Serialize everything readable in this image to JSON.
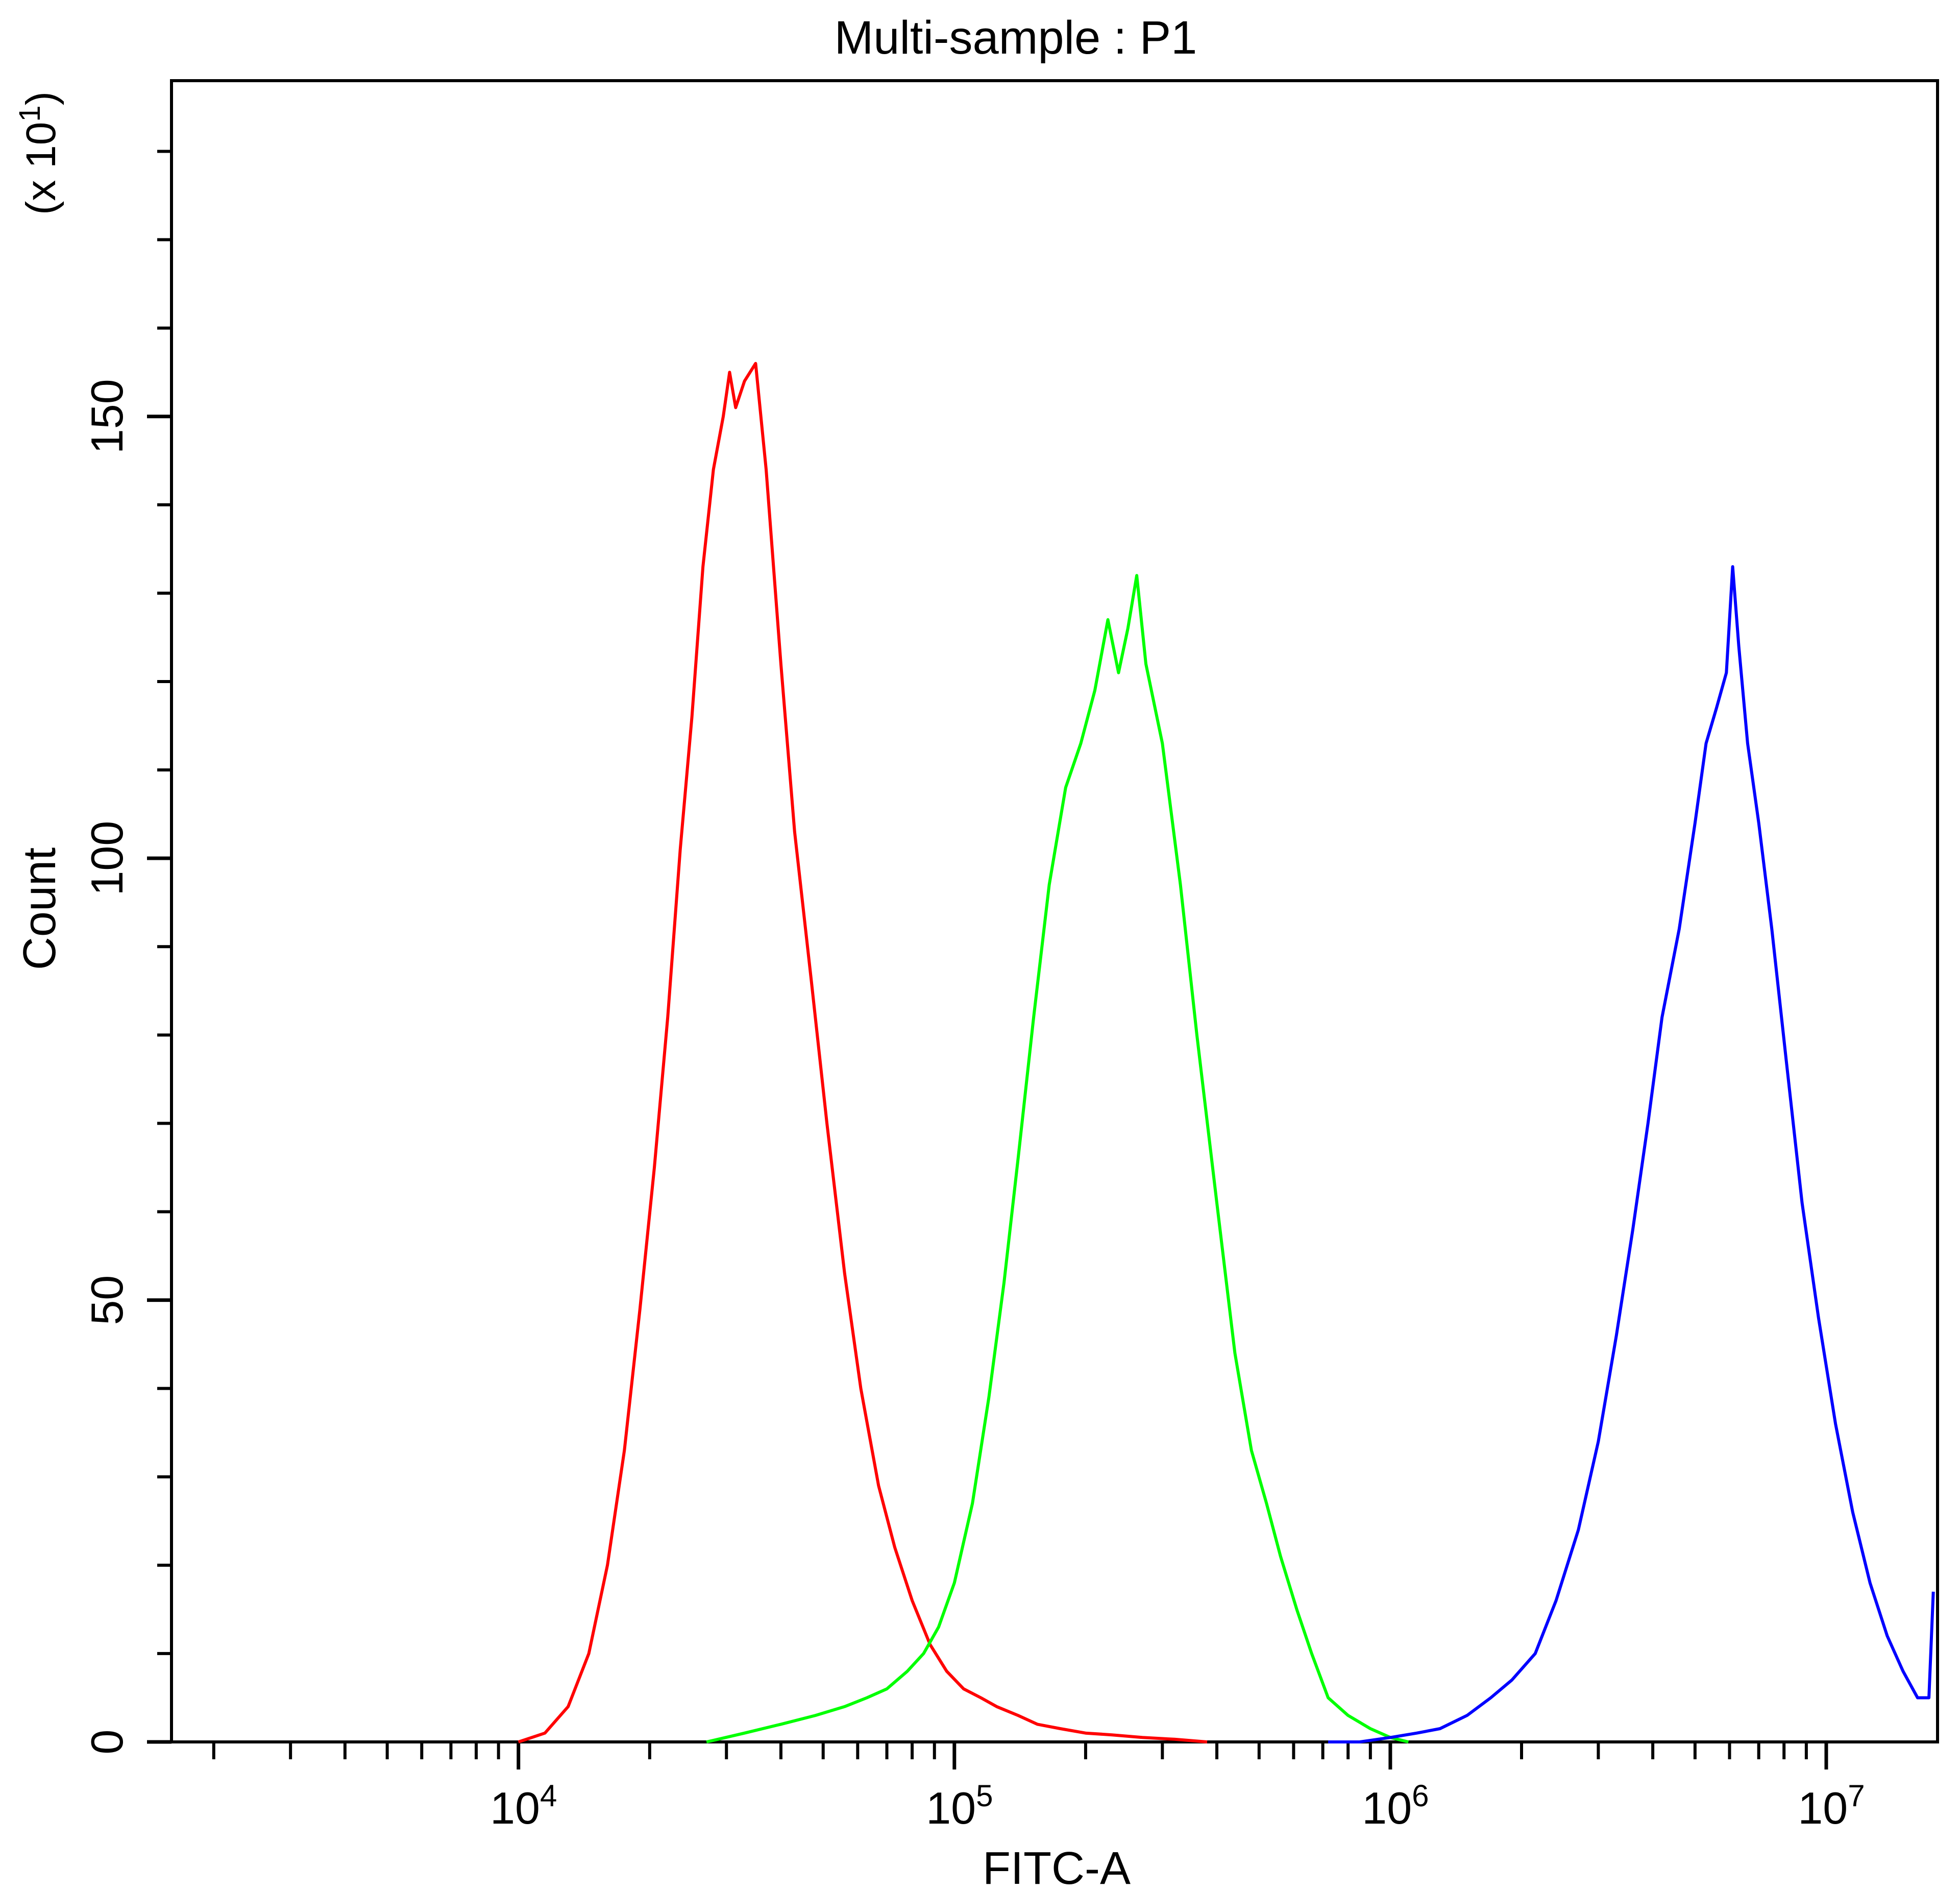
{
  "chart_data": {
    "type": "line",
    "title": "Multi-sample : P1",
    "xlabel": "FITC-A",
    "ylabel": "Count",
    "y_multiplier_label": "(x 10",
    "y_multiplier_exp": "1",
    "y_multiplier_close": ")",
    "x_scale": "log",
    "xlim": [
      1600,
      18000000
    ],
    "ylim": [
      0,
      188
    ],
    "x_ticks": [
      {
        "base": "10",
        "exp": "4",
        "value": 10000
      },
      {
        "base": "10",
        "exp": "5",
        "value": 100000
      },
      {
        "base": "10",
        "exp": "6",
        "value": 1000000
      },
      {
        "base": "10",
        "exp": "7",
        "value": 10000000
      }
    ],
    "y_ticks": [
      {
        "label": "0",
        "value": 0
      },
      {
        "label": "50",
        "value": 50
      },
      {
        "label": "100",
        "value": 100
      },
      {
        "label": "150",
        "value": 150
      }
    ],
    "grid": false,
    "legend": "none",
    "series": [
      {
        "color": "#ff0000",
        "x": [
          10000,
          11500,
          13000,
          14500,
          16000,
          17500,
          19000,
          20500,
          22000,
          23500,
          25000,
          26500,
          28000,
          29500,
          30500,
          31500,
          33000,
          35000,
          37000,
          40000,
          43000,
          47000,
          51000,
          56000,
          61000,
          67000,
          73000,
          80000,
          88000,
          96000,
          105000,
          115000,
          125000,
          140000,
          155000,
          175000,
          200000,
          230000,
          270000,
          320000,
          380000
        ],
        "y": [
          0,
          1,
          4,
          10,
          20,
          33,
          49,
          65,
          82,
          101,
          116,
          133,
          144,
          150,
          155,
          151,
          154,
          156,
          144,
          122,
          103,
          86,
          70,
          53,
          40,
          29,
          22,
          16,
          11,
          8,
          6,
          5,
          4,
          3,
          2,
          1.5,
          1,
          0.8,
          0.5,
          0.3,
          0
        ]
      },
      {
        "color": "#00ff00",
        "x": [
          27000,
          33000,
          40000,
          48000,
          56000,
          63000,
          70000,
          78000,
          85000,
          92000,
          100000,
          110000,
          120000,
          130000,
          140000,
          152000,
          165000,
          180000,
          195000,
          210000,
          225000,
          238000,
          250000,
          262000,
          275000,
          300000,
          330000,
          360000,
          400000,
          440000,
          480000,
          520000,
          560000,
          610000,
          660000,
          720000,
          800000,
          900000,
          1000000,
          1100000
        ],
        "y": [
          0,
          1,
          2,
          3,
          4,
          5,
          6,
          8,
          10,
          13,
          18,
          27,
          39,
          52,
          66,
          82,
          97,
          108,
          113,
          119,
          127,
          121,
          126,
          132,
          122,
          113,
          97,
          80,
          61,
          44,
          33,
          27,
          21,
          15,
          10,
          5,
          3,
          1.5,
          0.5,
          0
        ]
      },
      {
        "color": "#0000ff",
        "x": [
          720000,
          850000,
          1000000,
          1150000,
          1300000,
          1500000,
          1700000,
          1900000,
          2150000,
          2400000,
          2700000,
          3000000,
          3300000,
          3600000,
          3900000,
          4200000,
          4600000,
          5000000,
          5300000,
          5600000,
          5900000,
          6100000,
          6300000,
          6600000,
          7000000,
          7500000,
          8100000,
          8800000,
          9600000,
          10500000,
          11500000,
          12600000,
          13800000,
          15000000,
          16200000,
          17200000,
          17600000
        ],
        "y": [
          0,
          0,
          0.5,
          1,
          1.5,
          3,
          5,
          7,
          10,
          16,
          24,
          34,
          46,
          58,
          70,
          82,
          92,
          104,
          113,
          117,
          121,
          133,
          124,
          113,
          104,
          92,
          77,
          61,
          48,
          36,
          26,
          18,
          12,
          8,
          5,
          5,
          17
        ]
      }
    ]
  }
}
